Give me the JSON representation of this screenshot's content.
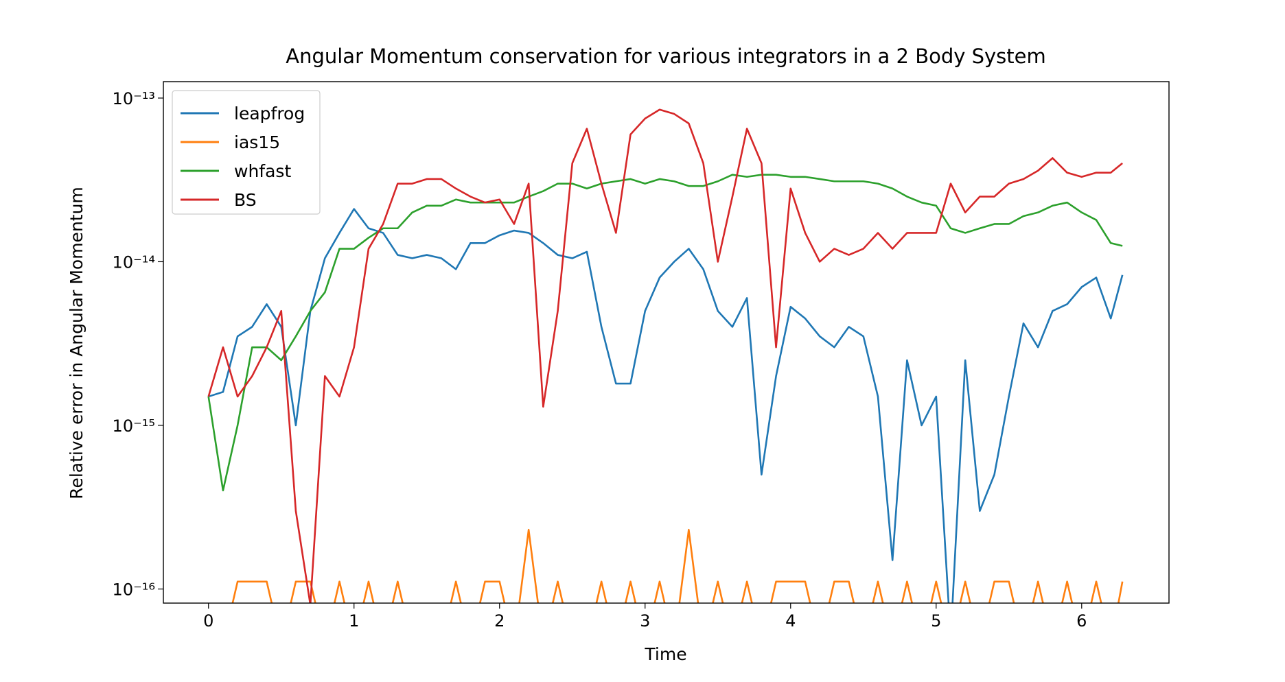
{
  "chart_data": {
    "type": "line",
    "title": "Angular Momentum conservation for various integrators in a 2 Body System",
    "xlabel": "Time",
    "ylabel": "Relative error in Angular Momentum",
    "yscale": "log",
    "legend": "upper left",
    "xlim": [
      -0.31,
      6.6
    ],
    "xticks": [
      0,
      1,
      2,
      3,
      4,
      5,
      6
    ],
    "ylim": [
      8.2e-17,
      1.26e-13
    ],
    "yticks": [
      {
        "value": 1e-16,
        "label": "10⁻¹⁶"
      },
      {
        "value": 1e-15,
        "label": "10⁻¹⁵"
      },
      {
        "value": 1e-14,
        "label": "10⁻¹⁴"
      },
      {
        "value": 1e-13,
        "label": "10⁻¹³"
      }
    ],
    "x": [
      0,
      0.1,
      0.2,
      0.3,
      0.4,
      0.5,
      0.6,
      0.7,
      0.8,
      0.9,
      1,
      1.1,
      1.2,
      1.3,
      1.4,
      1.5,
      1.6,
      1.7,
      1.8,
      1.9,
      2,
      2.1,
      2.2,
      2.3,
      2.4,
      2.5,
      2.6,
      2.7,
      2.8,
      2.9,
      3,
      3.1,
      3.2,
      3.3,
      3.4,
      3.5,
      3.6,
      3.7,
      3.8,
      3.9,
      4,
      4.1,
      4.2,
      4.3,
      4.4,
      4.5,
      4.6,
      4.7,
      4.8,
      4.9,
      5,
      5.1,
      5.2,
      5.3,
      5.4,
      5.5,
      5.6,
      5.7,
      5.8,
      5.9,
      6,
      6.1,
      6.2,
      6.28
    ],
    "series": [
      {
        "name": "leapfrog",
        "color": "#1f77b4",
        "values": [
          1.5e-15,
          1.6e-15,
          3.5e-15,
          4e-15,
          5.5e-15,
          4e-15,
          1e-15,
          5e-15,
          1.05e-14,
          1.5e-14,
          2.1e-14,
          1.6e-14,
          1.5e-14,
          1.1e-14,
          1.05e-14,
          1.1e-14,
          1.05e-14,
          9e-15,
          1.3e-14,
          1.3e-14,
          1.45e-14,
          1.55e-14,
          1.5e-14,
          1.3e-14,
          1.1e-14,
          1.05e-14,
          1.15e-14,
          4e-15,
          1.8e-15,
          1.8e-15,
          5e-15,
          8e-15,
          1e-14,
          1.2e-14,
          9e-15,
          5e-15,
          4e-15,
          6e-15,
          5e-16,
          2e-15,
          5.3e-15,
          4.5e-15,
          3.5e-15,
          3e-15,
          4e-15,
          3.5e-15,
          1.5e-15,
          1.5e-16,
          2.5e-15,
          1e-15,
          1.5e-15,
          5e-17,
          2.5e-15,
          3e-16,
          5e-16,
          1.5e-15,
          4.2e-15,
          3e-15,
          5e-15,
          5.5e-15,
          7e-15,
          8e-15,
          4.5e-15,
          8.3e-15
        ]
      },
      {
        "name": "ias15",
        "color": "#ff7f0e",
        "values": [
          0,
          0,
          1.11e-16,
          1.11e-16,
          1.11e-16,
          0,
          1.11e-16,
          1.11e-16,
          0,
          1.11e-16,
          0,
          1.11e-16,
          0,
          1.11e-16,
          0,
          0,
          0,
          1.11e-16,
          0,
          1.11e-16,
          1.11e-16,
          0,
          2.3e-16,
          0,
          1.11e-16,
          0,
          0,
          1.11e-16,
          0,
          1.11e-16,
          0,
          1.11e-16,
          0,
          2.3e-16,
          0,
          1.11e-16,
          0,
          1.11e-16,
          0,
          1.11e-16,
          1.11e-16,
          1.11e-16,
          0,
          1.11e-16,
          1.11e-16,
          0,
          1.11e-16,
          0,
          1.11e-16,
          0,
          1.11e-16,
          0,
          1.11e-16,
          0,
          1.11e-16,
          1.11e-16,
          0,
          1.11e-16,
          0,
          1.11e-16,
          0,
          1.11e-16,
          0,
          1.11e-16
        ]
      },
      {
        "name": "whfast",
        "color": "#2ca02c",
        "values": [
          1.5e-15,
          4e-16,
          1e-15,
          3e-15,
          3e-15,
          2.5e-15,
          3.5e-15,
          5e-15,
          6.5e-15,
          1.2e-14,
          1.2e-14,
          1.4e-14,
          1.6e-14,
          1.6e-14,
          2e-14,
          2.2e-14,
          2.2e-14,
          2.4e-14,
          2.3e-14,
          2.3e-14,
          2.3e-14,
          2.3e-14,
          2.5e-14,
          2.7e-14,
          3e-14,
          3e-14,
          2.8e-14,
          3e-14,
          3.1e-14,
          3.2e-14,
          3e-14,
          3.2e-14,
          3.1e-14,
          2.9e-14,
          2.9e-14,
          3.1e-14,
          3.4e-14,
          3.3e-14,
          3.4e-14,
          3.4e-14,
          3.3e-14,
          3.3e-14,
          3.2e-14,
          3.1e-14,
          3.1e-14,
          3.1e-14,
          3e-14,
          2.8e-14,
          2.5e-14,
          2.3e-14,
          2.2e-14,
          1.6e-14,
          1.5e-14,
          1.6e-14,
          1.7e-14,
          1.7e-14,
          1.9e-14,
          2e-14,
          2.2e-14,
          2.3e-14,
          2e-14,
          1.8e-14,
          1.3e-14,
          1.25e-14
        ]
      },
      {
        "name": "BS",
        "color": "#d62728",
        "values": [
          1.5e-15,
          3e-15,
          1.5e-15,
          2e-15,
          3e-15,
          5e-15,
          3e-16,
          8e-17,
          2e-15,
          1.5e-15,
          3e-15,
          1.2e-14,
          1.7e-14,
          3e-14,
          3e-14,
          3.2e-14,
          3.2e-14,
          2.8e-14,
          2.5e-14,
          2.3e-14,
          2.4e-14,
          1.7e-14,
          3e-14,
          1.3e-15,
          5e-15,
          4e-14,
          6.5e-14,
          3e-14,
          1.5e-14,
          6e-14,
          7.5e-14,
          8.5e-14,
          8e-14,
          7e-14,
          4e-14,
          1e-14,
          2.5e-14,
          6.5e-14,
          4e-14,
          3e-15,
          2.8e-14,
          1.5e-14,
          1e-14,
          1.2e-14,
          1.1e-14,
          1.2e-14,
          1.5e-14,
          1.2e-14,
          1.5e-14,
          1.5e-14,
          1.5e-14,
          3e-14,
          2e-14,
          2.5e-14,
          2.5e-14,
          3e-14,
          3.2e-14,
          3.6e-14,
          4.3e-14,
          3.5e-14,
          3.3e-14,
          3.5e-14,
          3.5e-14,
          4e-14
        ]
      }
    ]
  }
}
